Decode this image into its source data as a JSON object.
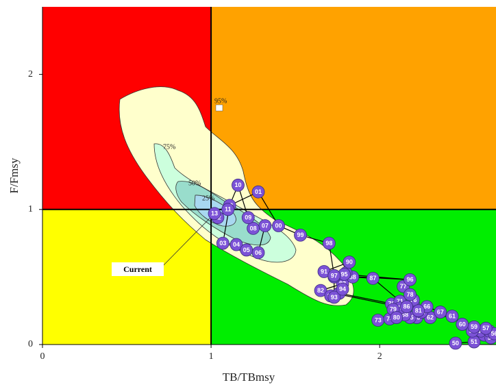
{
  "chart_data": {
    "type": "kobe",
    "x_label": "TB/TBmsy",
    "y_label": "F/Fmsy",
    "xlim": [
      0,
      2.69
    ],
    "ylim": [
      0,
      2.5
    ],
    "xticks": [
      0,
      1,
      2
    ],
    "yticks": [
      0,
      1,
      2
    ],
    "reference_lines": {
      "x": 1,
      "y": 1
    },
    "quadrant_colors": {
      "top_left": "#ff0000",
      "top_right": "#ffa200",
      "bottom_left": "#ffff00",
      "bottom_right": "#00ee00"
    },
    "contour_labels": [
      "95%",
      "75%",
      "50%",
      "25%"
    ],
    "current_label": "Current",
    "series": [
      {
        "color": "#7b52d6",
        "labels": [
          "50",
          "51",
          "52",
          "53",
          "54",
          "55",
          "56",
          "57",
          "58",
          "59",
          "60",
          "61",
          "62",
          "63",
          "64",
          "65",
          "66",
          "67",
          "68",
          "69",
          "70",
          "71",
          "72",
          "73",
          "74",
          "75",
          "76",
          "77",
          "78",
          "79",
          "80",
          "81",
          "82",
          "83",
          "84",
          "85",
          "86",
          "87",
          "88",
          "89",
          "90",
          "91",
          "92",
          "93",
          "94",
          "95",
          "96",
          "97",
          "98",
          "99",
          "00",
          "01",
          "02",
          "03",
          "04",
          "05",
          "06",
          "07",
          "08",
          "09",
          "10",
          "11",
          "12",
          "13"
        ],
        "x": [
          2.45,
          2.56,
          2.62,
          2.66,
          2.6,
          2.65,
          2.68,
          2.63,
          2.55,
          2.56,
          2.49,
          2.43,
          2.3,
          2.22,
          2.25,
          2.18,
          2.28,
          2.36,
          2.15,
          2.1,
          2.07,
          2.12,
          2.2,
          1.99,
          2.06,
          2.12,
          2.2,
          2.14,
          2.18,
          2.08,
          2.1,
          2.23,
          1.65,
          1.78,
          1.71,
          1.76,
          2.16,
          1.96,
          1.84,
          1.8,
          1.82,
          1.67,
          1.73,
          1.73,
          1.78,
          1.79,
          2.18,
          1.73,
          1.7,
          1.53,
          1.4,
          1.28,
          1.11,
          1.07,
          1.15,
          1.21,
          1.28,
          1.32,
          1.25,
          1.22,
          1.16,
          1.1,
          1.04,
          1.02
        ],
        "y": [
          0.01,
          0.02,
          0.07,
          0.05,
          0.1,
          0.1,
          0.08,
          0.12,
          0.1,
          0.13,
          0.15,
          0.21,
          0.2,
          0.2,
          0.24,
          0.2,
          0.28,
          0.24,
          0.22,
          0.25,
          0.3,
          0.32,
          0.3,
          0.18,
          0.19,
          0.27,
          0.33,
          0.43,
          0.37,
          0.26,
          0.2,
          0.25,
          0.4,
          0.45,
          0.36,
          0.38,
          0.28,
          0.49,
          0.5,
          0.53,
          0.61,
          0.54,
          0.5,
          0.35,
          0.41,
          0.52,
          0.48,
          0.51,
          0.75,
          0.81,
          0.88,
          1.13,
          1.03,
          0.75,
          0.74,
          0.7,
          0.68,
          0.88,
          0.86,
          0.94,
          1.18,
          1.0,
          0.94,
          0.97
        ]
      }
    ]
  }
}
